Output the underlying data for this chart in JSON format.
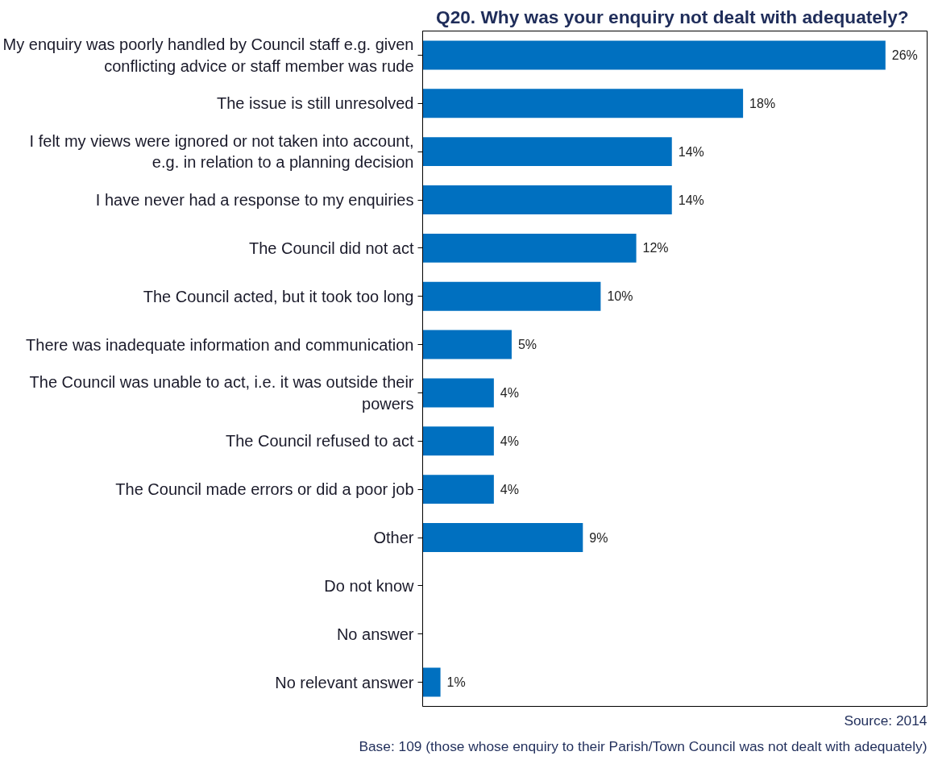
{
  "chart_data": {
    "type": "bar",
    "orientation": "horizontal",
    "title": "Q20. Why was your enquiry  not dealt with adequately?",
    "categories": [
      "My enquiry was poorly handled by Council staff e.g. given conflicting advice or staff member was rude",
      "The issue is still unresolved",
      "I felt my views were ignored or not taken into account, e.g. in relation to a planning decision",
      "I have never had a response to my enquiries",
      "The Council did not act",
      "The Council acted, but it took too long",
      "There was inadequate information and communication",
      "The Council was unable to act, i.e. it was outside their powers",
      "The Council refused to act",
      "The Council made errors or did a poor job",
      "Other",
      "Do not know",
      "No answer",
      "No relevant answer"
    ],
    "values": [
      26,
      18,
      14,
      14,
      12,
      10,
      5,
      4,
      4,
      4,
      9,
      null,
      null,
      1
    ],
    "value_labels": [
      "26%",
      "18%",
      "14%",
      "14%",
      "12%",
      "10%",
      "5%",
      "4%",
      "4%",
      "4%",
      "9%",
      null,
      null,
      "1%"
    ],
    "color": "#0070c0",
    "grid": false,
    "tick_labels": "y",
    "annotations": [
      "Source: 2014",
      "Base: 109 (those whose enquiry to their Parish/Town Council was not dealt with adequately)"
    ]
  }
}
